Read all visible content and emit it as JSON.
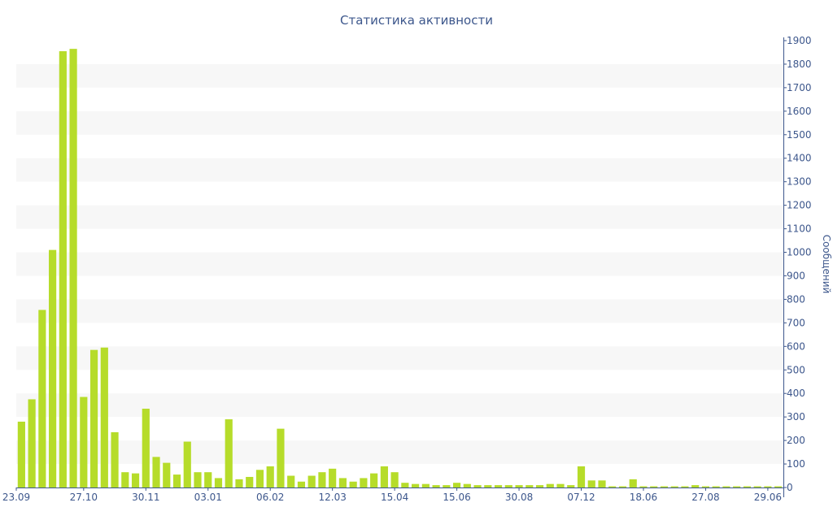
{
  "chart_data": {
    "type": "bar",
    "title": "Статистика активности",
    "xlabel": "",
    "ylabel": "Сообщений",
    "y_axis_side": "right",
    "ylim": [
      0,
      1900
    ],
    "yticks": [
      0,
      100,
      200,
      300,
      400,
      500,
      600,
      700,
      800,
      900,
      1000,
      1100,
      1200,
      1300,
      1400,
      1500,
      1600,
      1700,
      1800,
      1900
    ],
    "grid": "alternating horizontal bands",
    "x_tick_labels": [
      {
        "label": "23.09",
        "index": 0
      },
      {
        "label": "27.10",
        "index": 6
      },
      {
        "label": "30.11",
        "index": 12
      },
      {
        "label": "03.01",
        "index": 18
      },
      {
        "label": "06.02",
        "index": 24
      },
      {
        "label": "12.03",
        "index": 30
      },
      {
        "label": "15.04",
        "index": 36
      },
      {
        "label": "15.06",
        "index": 42
      },
      {
        "label": "30.08",
        "index": 48
      },
      {
        "label": "07.12",
        "index": 54
      },
      {
        "label": "18.06",
        "index": 60
      },
      {
        "label": "27.08",
        "index": 66
      },
      {
        "label": "29.06",
        "index": 72
      }
    ],
    "values": [
      280,
      375,
      755,
      1010,
      1855,
      1865,
      385,
      585,
      595,
      235,
      65,
      60,
      335,
      130,
      105,
      55,
      195,
      65,
      65,
      40,
      290,
      35,
      45,
      75,
      90,
      250,
      50,
      25,
      50,
      65,
      80,
      40,
      25,
      40,
      60,
      90,
      65,
      20,
      15,
      15,
      10,
      10,
      20,
      15,
      10,
      10,
      10,
      10,
      10,
      10,
      10,
      15,
      15,
      10,
      90,
      30,
      30,
      5,
      5,
      35,
      5,
      5,
      5,
      5,
      5,
      10,
      5,
      5,
      5,
      5,
      5,
      5,
      5,
      5
    ],
    "colors": {
      "bar": "#b6dc2a",
      "axis": "#3d578c",
      "band": "#f7f7f7"
    }
  }
}
